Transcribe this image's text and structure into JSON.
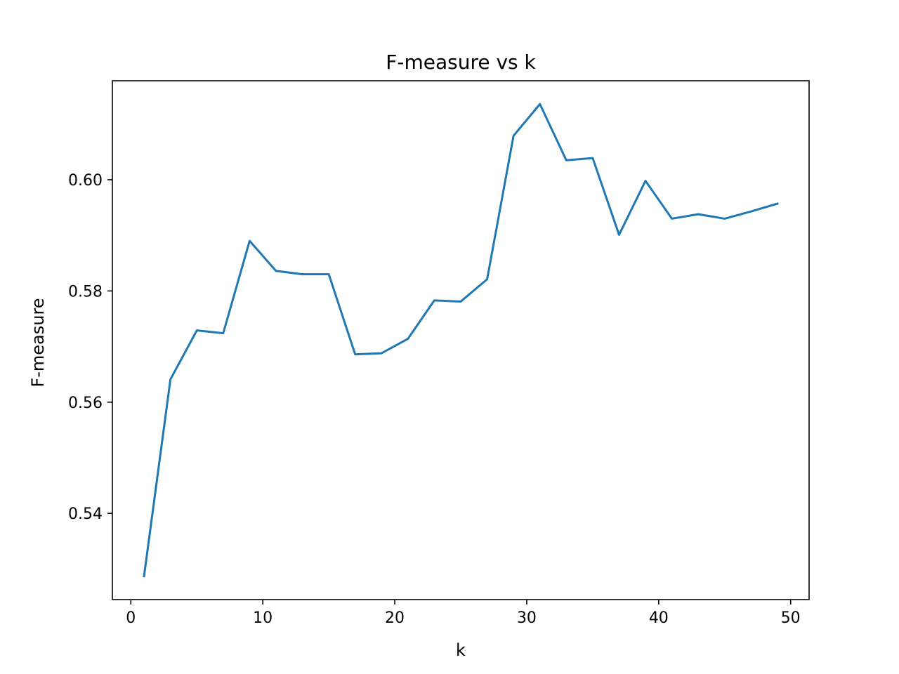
{
  "chart_data": {
    "type": "line",
    "title": "F-measure vs k",
    "xlabel": "k",
    "ylabel": "F-measure",
    "xlim": [
      -1.4,
      51.4
    ],
    "ylim": [
      0.5245,
      0.6178
    ],
    "xticks": [
      0,
      10,
      20,
      30,
      40,
      50
    ],
    "xtick_labels": [
      "0",
      "10",
      "20",
      "30",
      "40",
      "50"
    ],
    "yticks": [
      0.54,
      0.56,
      0.58,
      0.6
    ],
    "ytick_labels": [
      "0.54",
      "0.56",
      "0.58",
      "0.60"
    ],
    "grid": false,
    "series": [
      {
        "color": "#1f77b4",
        "x": [
          1,
          3,
          5,
          7,
          9,
          11,
          13,
          15,
          17,
          19,
          21,
          23,
          25,
          27,
          29,
          31,
          33,
          35,
          37,
          39,
          41,
          43,
          45,
          47,
          49
        ],
        "y": [
          0.5287,
          0.5641,
          0.5729,
          0.5724,
          0.589,
          0.5836,
          0.583,
          0.583,
          0.5686,
          0.5688,
          0.5714,
          0.5783,
          0.5781,
          0.5821,
          0.6079,
          0.6136,
          0.6035,
          0.6039,
          0.5901,
          0.5998,
          0.593,
          0.5938,
          0.593,
          0.5943,
          0.5957
        ]
      }
    ]
  }
}
